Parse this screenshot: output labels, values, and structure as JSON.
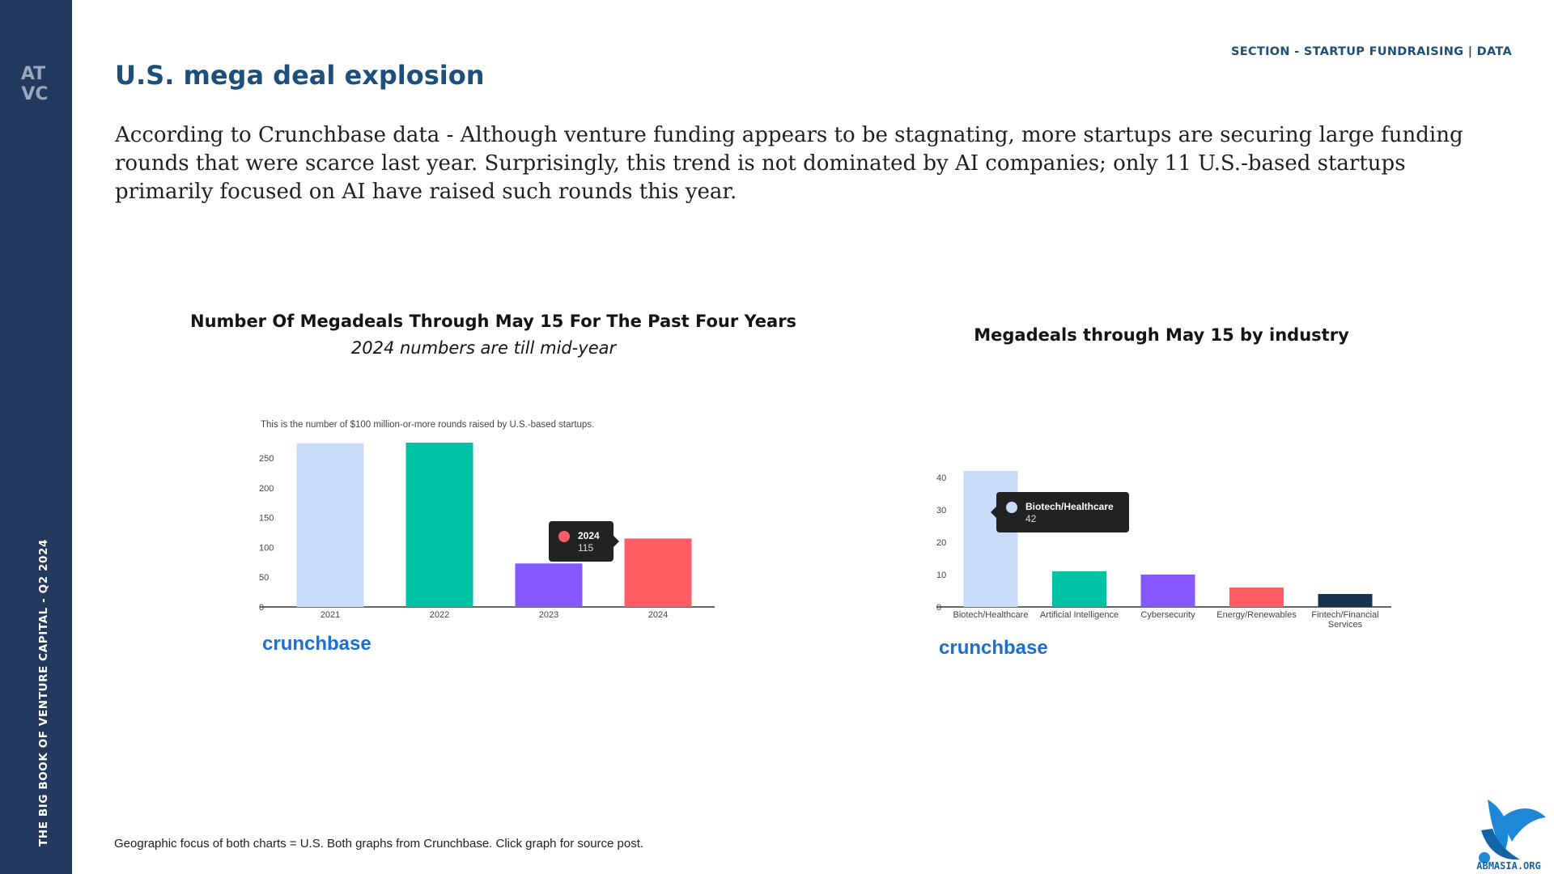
{
  "sidebar": {
    "logo_text": "ATVC",
    "vertical_text": "THE BIG BOOK OF VENTURE CAPITAL - Q2 2024"
  },
  "header": {
    "section_label": "SECTION - STARTUP FUNDRAISING | DATA",
    "title": "U.S. mega deal explosion"
  },
  "intro_text": "According to Crunchbase data - Although venture funding appears to be stagnating, more startups are securing large funding rounds that were scarce last year. Surprisingly, this trend is not dominated by AI companies; only 11 U.S.-based startups primarily focused on AI have raised such rounds this year.",
  "footer_text": "Geographic focus of both charts = U.S. Both graphs from Crunchbase. Click graph for source post.",
  "corner_logo_text": "ABMASIA.ORG",
  "colors": {
    "sidebar": "#24395e",
    "title": "#1d4f7c",
    "light_blue": "#c9dcfa",
    "teal": "#00c2a5",
    "purple": "#8559fd",
    "red": "#ff5c64",
    "navy": "#17324a",
    "tooltip": "#222222",
    "brand": "#1a6fd0"
  },
  "chart_data": [
    {
      "type": "bar",
      "title": "Number Of Megadeals Through May 15 For The Past Four Years",
      "subtitle": "2024 numbers are till mid-year",
      "note": "This is the number of $100 million-or-more rounds raised by U.S.-based startups.",
      "categories": [
        "2021",
        "2022",
        "2023",
        "2024"
      ],
      "values": [
        275,
        276,
        73,
        115
      ],
      "bar_colors": [
        "#c9dcfa",
        "#00c2a5",
        "#8559fd",
        "#ff5c64"
      ],
      "yticks": [
        0,
        50,
        100,
        150,
        200,
        250
      ],
      "ylim": [
        0,
        280
      ],
      "grid": false,
      "source": "crunchbase",
      "tooltip": {
        "label": "2024",
        "value": "115",
        "category": "2024"
      }
    },
    {
      "type": "bar",
      "title": "Megadeals through May 15 by industry",
      "note": "",
      "categories": [
        "Biotech/Healthcare",
        "Artificial Intelligence",
        "Cybersecurity",
        "Energy/Renewables",
        "Fintech/Financial Services"
      ],
      "values": [
        42,
        11,
        10,
        6,
        4
      ],
      "bar_colors": [
        "#c9dcfa",
        "#00c2a5",
        "#8559fd",
        "#ff5c64",
        "#17324a"
      ],
      "yticks": [
        0,
        10,
        20,
        30,
        40
      ],
      "ylim": [
        0,
        42
      ],
      "grid": false,
      "source": "crunchbase",
      "tooltip": {
        "label": "Biotech/Healthcare",
        "value": "42",
        "category": "Biotech/Healthcare"
      }
    }
  ]
}
